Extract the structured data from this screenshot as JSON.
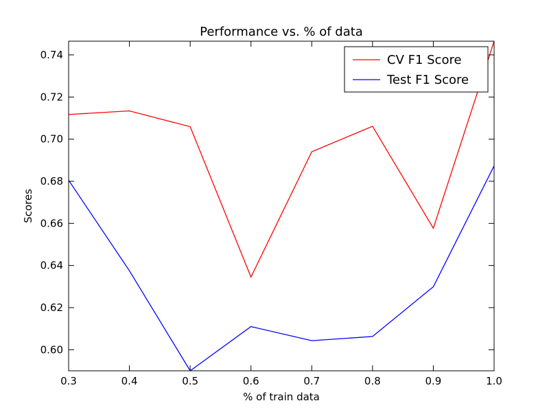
{
  "chart_data": {
    "type": "line",
    "title": "Performance vs. % of data",
    "xlabel": "% of train data",
    "ylabel": "Scores",
    "xlim": [
      0.3,
      1.0
    ],
    "ylim": [
      0.59,
      0.7465
    ],
    "x_ticks": [
      0.3,
      0.4,
      0.5,
      0.6,
      0.7,
      0.8,
      0.9,
      1.0
    ],
    "x_tick_labels": [
      "0.3",
      "0.4",
      "0.5",
      "0.6",
      "0.7",
      "0.8",
      "0.9",
      "1.0"
    ],
    "y_ticks": [
      0.6,
      0.62,
      0.64,
      0.66,
      0.68,
      0.7,
      0.72,
      0.74
    ],
    "y_tick_labels": [
      "0.60",
      "0.62",
      "0.64",
      "0.66",
      "0.68",
      "0.70",
      "0.72",
      "0.74"
    ],
    "grid": false,
    "legend_position": "top-right",
    "x": [
      0.3,
      0.4,
      0.5,
      0.6,
      0.7,
      0.8,
      0.9,
      1.0
    ],
    "series": [
      {
        "name": "CV F1 Score",
        "color": "#ff0000",
        "values": [
          0.7117,
          0.7134,
          0.7059,
          0.6345,
          0.694,
          0.7061,
          0.6577,
          0.7465
        ]
      },
      {
        "name": "Test F1 Score",
        "color": "#0000ff",
        "values": [
          0.6805,
          0.6375,
          0.59,
          0.611,
          0.6043,
          0.6063,
          0.6299,
          0.6873
        ]
      }
    ]
  }
}
